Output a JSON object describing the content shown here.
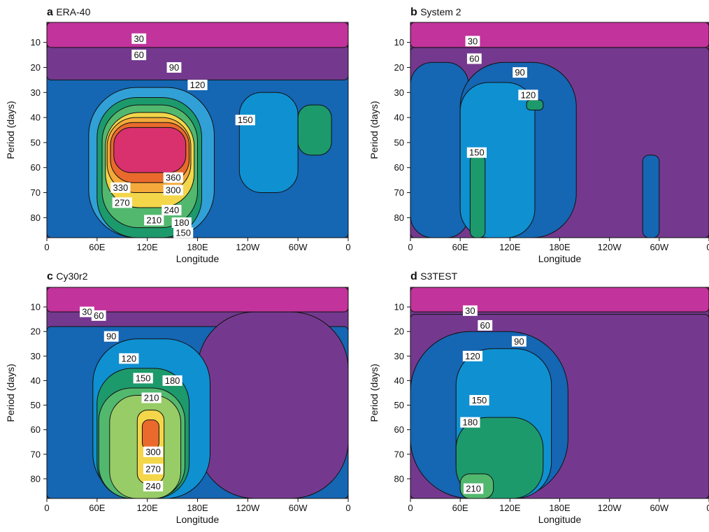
{
  "colors": {
    "level_0": "#1f5ea8",
    "level_30": "#c2339c",
    "level_60": "#9a3e9a",
    "level_90": "#74398f",
    "level_120": "#1566b3",
    "level_150": "#0f90d1",
    "level_180": "#31a0d7",
    "level_210": "#1d9a6c",
    "level_240": "#52b86e",
    "level_270": "#98cc66",
    "level_300": "#f3d64a",
    "level_330": "#f4a93a",
    "level_360": "#e96a2c",
    "level_high": "#d9306e",
    "contour_line": "#111111",
    "label_box": "#ffffff"
  },
  "chart_data": [
    {
      "type": "heatmap",
      "panel_letter": "a",
      "title": "ERA-40",
      "xlabel": "Longitude",
      "ylabel": "Period (days)",
      "x_ticks": [
        "0",
        "60E",
        "120E",
        "180E",
        "120W",
        "60W",
        "0"
      ],
      "y_ticks": [
        "10",
        "20",
        "30",
        "40",
        "50",
        "60",
        "70",
        "80"
      ],
      "contour_labels": [
        {
          "text": "30",
          "lon": 110,
          "period": 8.5
        },
        {
          "text": "60",
          "lon": 110,
          "period": 15
        },
        {
          "text": "90",
          "lon": 152,
          "period": 20
        },
        {
          "text": "120",
          "lon": 180,
          "period": 27
        },
        {
          "text": "150",
          "lon": 237,
          "period": 41
        },
        {
          "text": "360",
          "lon": 151,
          "period": 64
        },
        {
          "text": "330",
          "lon": 88,
          "period": 68
        },
        {
          "text": "300",
          "lon": 151,
          "period": 69
        },
        {
          "text": "270",
          "lon": 90,
          "period": 74
        },
        {
          "text": "240",
          "lon": 149,
          "period": 77
        },
        {
          "text": "210",
          "lon": 128,
          "period": 81
        },
        {
          "text": "180",
          "lon": 161,
          "period": 82
        },
        {
          "text": "150",
          "lon": 163,
          "period": 86
        }
      ],
      "regions": [
        {
          "level": 120,
          "lon": [
            0,
            360
          ],
          "period": [
            20,
            88
          ]
        },
        {
          "level": 90,
          "lon": [
            0,
            360
          ],
          "period": [
            11,
            25
          ]
        },
        {
          "level": 180,
          "lon": [
            50,
            200
          ],
          "period": [
            28,
            88
          ]
        },
        {
          "level": 150,
          "lon": [
            230,
            300
          ],
          "period": [
            30,
            70
          ]
        },
        {
          "level": 210,
          "lon": [
            300,
            340
          ],
          "period": [
            35,
            55
          ]
        },
        {
          "level": 210,
          "lon": [
            60,
            185
          ],
          "period": [
            32,
            88
          ]
        },
        {
          "level": 240,
          "lon": [
            66,
            180
          ],
          "period": [
            35,
            84
          ]
        },
        {
          "level": 300,
          "lon": [
            70,
            176
          ],
          "period": [
            38,
            76
          ]
        },
        {
          "level": 330,
          "lon": [
            72,
            172
          ],
          "period": [
            40,
            70
          ]
        },
        {
          "level": 360,
          "lon": [
            76,
            170
          ],
          "period": [
            42,
            66
          ]
        },
        {
          "level": 400,
          "lon": [
            80,
            166
          ],
          "period": [
            44,
            62
          ]
        },
        {
          "level": 30,
          "lon": [
            0,
            360
          ],
          "period": [
            2,
            12
          ]
        }
      ]
    },
    {
      "type": "heatmap",
      "panel_letter": "b",
      "title": "System 2",
      "xlabel": "Longitude",
      "ylabel": "Period (days)",
      "x_ticks": [
        "0",
        "60E",
        "120E",
        "180E",
        "120W",
        "60W",
        "0"
      ],
      "y_ticks": [
        "10",
        "20",
        "30",
        "40",
        "50",
        "60",
        "70",
        "80"
      ],
      "contour_labels": [
        {
          "text": "30",
          "lon": 75,
          "period": 9.5
        },
        {
          "text": "60",
          "lon": 77,
          "period": 16.5
        },
        {
          "text": "90",
          "lon": 132,
          "period": 22
        },
        {
          "text": "120",
          "lon": 142,
          "period": 31
        },
        {
          "text": "150",
          "lon": 80,
          "period": 54
        }
      ],
      "regions": [
        {
          "level": 90,
          "lon": [
            0,
            360
          ],
          "period": [
            12,
            88
          ]
        },
        {
          "level": 120,
          "lon": [
            0,
            70
          ],
          "period": [
            18,
            88
          ]
        },
        {
          "level": 120,
          "lon": [
            60,
            200
          ],
          "period": [
            18,
            88
          ]
        },
        {
          "level": 150,
          "lon": [
            60,
            150
          ],
          "period": [
            26,
            88
          ]
        },
        {
          "level": 210,
          "lon": [
            72,
            90
          ],
          "period": [
            55,
            88
          ]
        },
        {
          "level": 210,
          "lon": [
            140,
            160
          ],
          "period": [
            33,
            37
          ]
        },
        {
          "level": 120,
          "lon": [
            280,
            300
          ],
          "period": [
            55,
            88
          ]
        },
        {
          "level": 30,
          "lon": [
            0,
            360
          ],
          "period": [
            2,
            12
          ]
        }
      ]
    },
    {
      "type": "heatmap",
      "panel_letter": "c",
      "title": "Cy30r2",
      "xlabel": "Longitude",
      "ylabel": "Period (days)",
      "x_ticks": [
        "0",
        "60E",
        "120E",
        "180E",
        "120W",
        "60W",
        "0"
      ],
      "y_ticks": [
        "10",
        "20",
        "30",
        "40",
        "50",
        "60",
        "70",
        "80"
      ],
      "contour_labels": [
        {
          "text": "30",
          "lon": 48,
          "period": 12
        },
        {
          "text": "60",
          "lon": 62,
          "period": 13.5
        },
        {
          "text": "90",
          "lon": 77,
          "period": 22
        },
        {
          "text": "120",
          "lon": 98,
          "period": 31
        },
        {
          "text": "150",
          "lon": 115,
          "period": 39
        },
        {
          "text": "180",
          "lon": 150,
          "period": 40
        },
        {
          "text": "210",
          "lon": 125,
          "period": 47
        },
        {
          "text": "300",
          "lon": 127,
          "period": 69
        },
        {
          "text": "270",
          "lon": 127,
          "period": 76
        },
        {
          "text": "240",
          "lon": 127,
          "period": 83
        }
      ],
      "regions": [
        {
          "level": 120,
          "lon": [
            0,
            360
          ],
          "period": [
            18,
            88
          ]
        },
        {
          "level": 90,
          "lon": [
            180,
            360
          ],
          "period": [
            12,
            88
          ]
        },
        {
          "level": 150,
          "lon": [
            55,
            195
          ],
          "period": [
            23,
            88
          ]
        },
        {
          "level": 210,
          "lon": [
            60,
            170
          ],
          "period": [
            35,
            88
          ]
        },
        {
          "level": 240,
          "lon": [
            62,
            165
          ],
          "period": [
            43,
            88
          ]
        },
        {
          "level": 270,
          "lon": [
            75,
            160
          ],
          "period": [
            46,
            88
          ]
        },
        {
          "level": 300,
          "lon": [
            108,
            140
          ],
          "period": [
            52,
            82
          ]
        },
        {
          "level": 360,
          "lon": [
            114,
            134
          ],
          "period": [
            56,
            68
          ]
        },
        {
          "level": 30,
          "lon": [
            0,
            360
          ],
          "period": [
            2,
            12
          ]
        }
      ]
    },
    {
      "type": "heatmap",
      "panel_letter": "d",
      "title": "S3TEST",
      "xlabel": "Longitude",
      "ylabel": "Period (days)",
      "x_ticks": [
        "0",
        "60E",
        "120E",
        "180E",
        "120W",
        "60W",
        "0"
      ],
      "y_ticks": [
        "10",
        "20",
        "30",
        "40",
        "50",
        "60",
        "70",
        "80"
      ],
      "contour_labels": [
        {
          "text": "30",
          "lon": 72,
          "period": 11.5
        },
        {
          "text": "60",
          "lon": 90,
          "period": 17.5
        },
        {
          "text": "90",
          "lon": 131,
          "period": 24
        },
        {
          "text": "120",
          "lon": 75,
          "period": 30
        },
        {
          "text": "150",
          "lon": 83,
          "period": 48
        },
        {
          "text": "180",
          "lon": 72,
          "period": 57
        },
        {
          "text": "210",
          "lon": 76,
          "period": 84
        }
      ],
      "regions": [
        {
          "level": 90,
          "lon": [
            0,
            360
          ],
          "period": [
            13,
            88
          ]
        },
        {
          "level": 120,
          "lon": [
            0,
            190
          ],
          "period": [
            20,
            88
          ]
        },
        {
          "level": 150,
          "lon": [
            55,
            170
          ],
          "period": [
            27,
            88
          ]
        },
        {
          "level": 210,
          "lon": [
            55,
            160
          ],
          "period": [
            55,
            88
          ]
        },
        {
          "level": 240,
          "lon": [
            60,
            100
          ],
          "period": [
            78,
            88
          ]
        },
        {
          "level": 30,
          "lon": [
            0,
            360
          ],
          "period": [
            2,
            12
          ]
        }
      ]
    }
  ]
}
